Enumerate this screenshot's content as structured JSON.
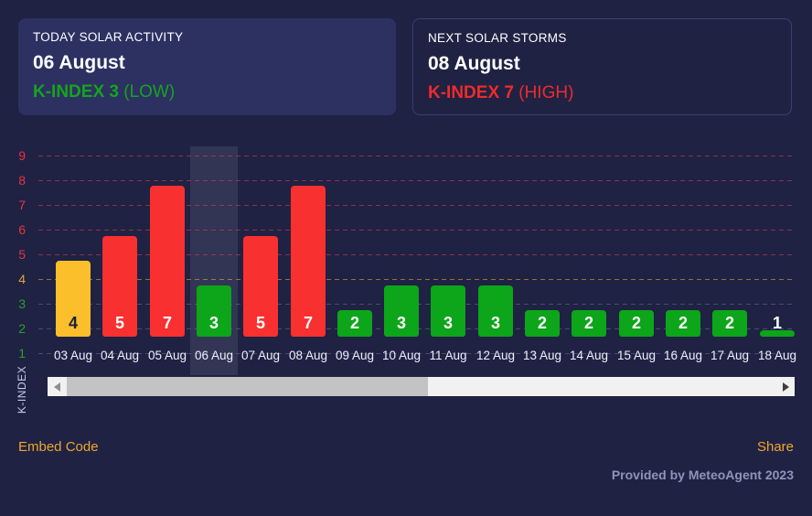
{
  "today_card": {
    "title": "TODAY SOLAR ACTIVITY",
    "date": "06 August",
    "kindex": "K-INDEX 3",
    "level": "(LOW)"
  },
  "next_card": {
    "title": "NEXT SOLAR STORMS",
    "date": "08 August",
    "kindex": "K-INDEX 7",
    "level": "(HIGH)"
  },
  "chart_data": {
    "type": "bar",
    "categories": [
      "03 Aug",
      "04 Aug",
      "05 Aug",
      "06 Aug",
      "07 Aug",
      "08 Aug",
      "09 Aug",
      "10 Aug",
      "11 Aug",
      "12 Aug",
      "13 Aug",
      "14 Aug",
      "15 Aug",
      "16 Aug",
      "17 Aug",
      "18 Aug"
    ],
    "values": [
      4,
      5,
      7,
      3,
      5,
      7,
      2,
      3,
      3,
      3,
      2,
      2,
      2,
      2,
      2,
      1
    ],
    "title": "",
    "xlabel": "",
    "ylabel": "K-INDEX",
    "yticks": [
      1,
      2,
      3,
      4,
      5,
      6,
      7,
      8,
      9
    ],
    "ylim": [
      1,
      9.3
    ],
    "grid": "dashed-horizontal",
    "legend": "none",
    "highlighted_category": "06 Aug",
    "color_rules": {
      "low_max": 3,
      "moderate_max": 4
    },
    "colors": {
      "low_bar": "#0da51a",
      "moderate_bar": "#fbbf2c",
      "high_bar": "#f93030",
      "low_tick": "#24a22e",
      "moderate_tick": "#dfa43a",
      "high_tick": "#e5343f",
      "grid_low": "rgba(148,158,210,0.33)",
      "grid_moderate": "rgba(224,166,58,0.6)",
      "grid_high": "rgba(233,62,79,0.55)",
      "value_label_light": "#ffffff",
      "value_label_dark": "#1b2040",
      "highlight_band": "rgba(255,255,255,0.085)"
    }
  },
  "footer": {
    "embed_label": "Embed Code",
    "share_label": "Share",
    "provided_by": "Provided by MeteoAgent 2023"
  }
}
